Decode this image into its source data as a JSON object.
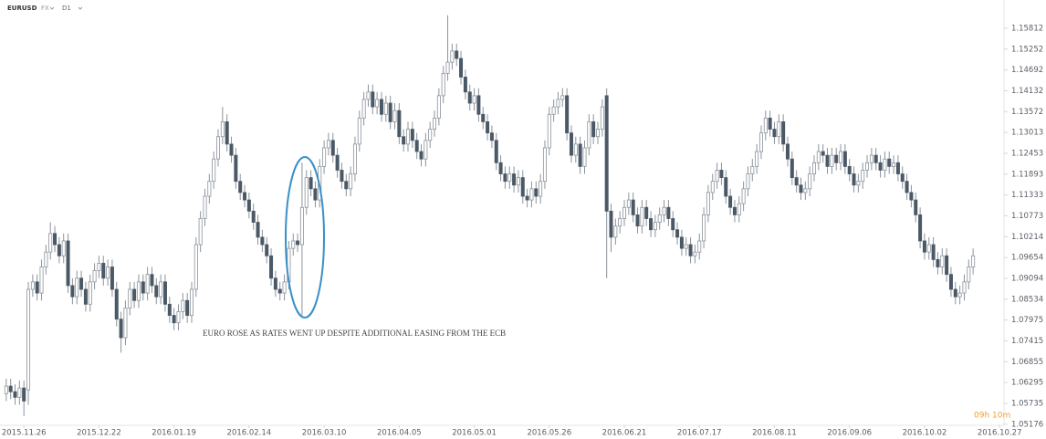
{
  "chart_data": {
    "type": "candlestick",
    "title": "EURUSD",
    "tags": [
      "FX",
      "D1"
    ],
    "annotation": "EURO ROSE AS RATES WENT UP DESPITE ADDITIONAL EASING FROM THE ECB",
    "timer": "09h 10m",
    "up_color": "#ffffff",
    "down_color": "#4b5866",
    "wick_color": "#8c939b",
    "timer_color": "#f0a030",
    "ylim": [
      1.0505,
      1.1657
    ],
    "yticks": [
      1.05176,
      1.05735,
      1.06295,
      1.06855,
      1.07415,
      1.07975,
      1.08534,
      1.09094,
      1.09654,
      1.10214,
      1.10773,
      1.11333,
      1.11893,
      1.12453,
      1.13013,
      1.13572,
      1.14132,
      1.14692,
      1.15252,
      1.15812
    ],
    "xlim": [
      -1,
      226
    ],
    "xticks": [
      {
        "value": 4,
        "label": "2015.11.26"
      },
      {
        "value": 21,
        "label": "2015.12.22"
      },
      {
        "value": 38,
        "label": "2016.01.19"
      },
      {
        "value": 55,
        "label": "2016.02.14"
      },
      {
        "value": 72,
        "label": "2016.03.10"
      },
      {
        "value": 89,
        "label": "2016.04.05"
      },
      {
        "value": 106,
        "label": "2016.05.01"
      },
      {
        "value": 123,
        "label": "2016.05.26"
      },
      {
        "value": 140,
        "label": "2016.06.21"
      },
      {
        "value": 157,
        "label": "2016.07.17"
      },
      {
        "value": 174,
        "label": "2016.08.11"
      },
      {
        "value": 191,
        "label": "2016.09.06"
      },
      {
        "value": 208,
        "label": "2016.10.02"
      },
      {
        "value": 225,
        "label": "2016.10.27"
      }
    ],
    "open": [
      1.06,
      1.062,
      1.0605,
      1.059,
      1.0615,
      1.061,
      1.088,
      1.09,
      1.087,
      1.094,
      1.098,
      1.103,
      1.1,
      1.097,
      1.101,
      1.089,
      1.086,
      1.091,
      1.088,
      1.084,
      1.09,
      1.093,
      1.095,
      1.091,
      1.094,
      1.088,
      1.08,
      1.075,
      1.083,
      1.088,
      1.085,
      1.09,
      1.087,
      1.092,
      1.089,
      1.086,
      1.09,
      1.084,
      1.081,
      1.079,
      1.082,
      1.085,
      1.081,
      1.088,
      1.1,
      1.107,
      1.113,
      1.117,
      1.123,
      1.129,
      1.133,
      1.127,
      1.124,
      1.117,
      1.114,
      1.112,
      1.109,
      1.106,
      1.102,
      1.1,
      1.097,
      1.091,
      1.088,
      1.087,
      1.09,
      1.099,
      1.101,
      1.1,
      1.11,
      1.118,
      1.115,
      1.112,
      1.121,
      1.126,
      1.128,
      1.124,
      1.12,
      1.117,
      1.115,
      1.119,
      1.127,
      1.134,
      1.139,
      1.141,
      1.137,
      1.139,
      1.135,
      1.138,
      1.133,
      1.136,
      1.129,
      1.127,
      1.131,
      1.128,
      1.125,
      1.123,
      1.128,
      1.131,
      1.134,
      1.14,
      1.146,
      1.149,
      1.152,
      1.15,
      1.145,
      1.141,
      1.138,
      1.14,
      1.135,
      1.133,
      1.13,
      1.128,
      1.122,
      1.119,
      1.117,
      1.119,
      1.116,
      1.118,
      1.113,
      1.112,
      1.115,
      1.113,
      1.117,
      1.126,
      1.135,
      1.137,
      1.139,
      1.14,
      1.13,
      1.124,
      1.127,
      1.121,
      1.126,
      1.133,
      1.129,
      1.131,
      1.14,
      1.109,
      1.102,
      1.105,
      1.107,
      1.11,
      1.112,
      1.108,
      1.105,
      1.11,
      1.107,
      1.104,
      1.106,
      1.108,
      1.11,
      1.107,
      1.104,
      1.102,
      1.099,
      1.1,
      1.097,
      1.098,
      1.101,
      1.108,
      1.114,
      1.117,
      1.12,
      1.118,
      1.113,
      1.11,
      1.108,
      1.111,
      1.115,
      1.119,
      1.121,
      1.125,
      1.13,
      1.134,
      1.131,
      1.129,
      1.133,
      1.127,
      1.123,
      1.118,
      1.116,
      1.114,
      1.115,
      1.119,
      1.122,
      1.125,
      1.124,
      1.121,
      1.124,
      1.122,
      1.125,
      1.121,
      1.119,
      1.116,
      1.117,
      1.12,
      1.122,
      1.124,
      1.122,
      1.12,
      1.123,
      1.121,
      1.122,
      1.119,
      1.117,
      1.114,
      1.112,
      1.108,
      1.101,
      1.098,
      1.1,
      1.096,
      1.094,
      1.097,
      1.092,
      1.088,
      1.086,
      1.087,
      1.09,
      1.094
    ],
    "high": [
      1.064,
      1.064,
      1.0625,
      1.0635,
      1.0635,
      1.09,
      1.092,
      1.092,
      1.096,
      1.1,
      1.106,
      1.105,
      1.102,
      1.103,
      1.103,
      1.091,
      1.093,
      1.093,
      1.09,
      1.092,
      1.095,
      1.097,
      1.097,
      1.096,
      1.096,
      1.09,
      1.082,
      1.085,
      1.09,
      1.09,
      1.092,
      1.092,
      1.094,
      1.094,
      1.091,
      1.092,
      1.092,
      1.086,
      1.083,
      1.084,
      1.087,
      1.087,
      1.09,
      1.102,
      1.109,
      1.115,
      1.119,
      1.125,
      1.131,
      1.137,
      1.135,
      1.129,
      1.126,
      1.119,
      1.116,
      1.114,
      1.111,
      1.108,
      1.104,
      1.102,
      1.099,
      1.093,
      1.09,
      1.092,
      1.101,
      1.103,
      1.103,
      1.122,
      1.12,
      1.12,
      1.117,
      1.123,
      1.128,
      1.13,
      1.13,
      1.126,
      1.122,
      1.119,
      1.121,
      1.129,
      1.136,
      1.141,
      1.143,
      1.143,
      1.141,
      1.141,
      1.14,
      1.14,
      1.138,
      1.138,
      1.131,
      1.133,
      1.133,
      1.13,
      1.127,
      1.13,
      1.133,
      1.136,
      1.142,
      1.148,
      1.1616,
      1.154,
      1.154,
      1.152,
      1.147,
      1.143,
      1.142,
      1.142,
      1.137,
      1.135,
      1.132,
      1.13,
      1.124,
      1.121,
      1.121,
      1.121,
      1.12,
      1.12,
      1.115,
      1.117,
      1.117,
      1.119,
      1.128,
      1.137,
      1.139,
      1.141,
      1.142,
      1.142,
      1.132,
      1.129,
      1.129,
      1.128,
      1.135,
      1.135,
      1.133,
      1.139,
      1.142,
      1.111,
      1.107,
      1.109,
      1.112,
      1.114,
      1.114,
      1.11,
      1.112,
      1.112,
      1.109,
      1.108,
      1.11,
      1.112,
      1.112,
      1.109,
      1.106,
      1.104,
      1.102,
      1.102,
      1.1,
      1.103,
      1.11,
      1.116,
      1.119,
      1.122,
      1.122,
      1.12,
      1.115,
      1.112,
      1.113,
      1.117,
      1.121,
      1.123,
      1.127,
      1.132,
      1.136,
      1.136,
      1.133,
      1.135,
      1.135,
      1.129,
      1.125,
      1.12,
      1.118,
      1.117,
      1.121,
      1.124,
      1.127,
      1.127,
      1.126,
      1.126,
      1.126,
      1.127,
      1.127,
      1.123,
      1.121,
      1.119,
      1.122,
      1.124,
      1.126,
      1.126,
      1.124,
      1.125,
      1.125,
      1.124,
      1.124,
      1.121,
      1.119,
      1.116,
      1.114,
      1.11,
      1.103,
      1.102,
      1.102,
      1.098,
      1.099,
      1.099,
      1.094,
      1.09,
      1.089,
      1.092,
      1.096,
      1.099
    ],
    "low": [
      1.058,
      1.0585,
      1.057,
      1.057,
      1.054,
      1.057,
      1.086,
      1.085,
      1.085,
      1.092,
      1.096,
      1.098,
      1.095,
      1.095,
      1.087,
      1.084,
      1.084,
      1.086,
      1.082,
      1.082,
      1.088,
      1.091,
      1.089,
      1.089,
      1.086,
      1.078,
      1.071,
      1.073,
      1.081,
      1.083,
      1.083,
      1.085,
      1.085,
      1.087,
      1.084,
      1.084,
      1.082,
      1.079,
      1.077,
      1.077,
      1.08,
      1.079,
      1.079,
      1.086,
      1.098,
      1.105,
      1.111,
      1.115,
      1.121,
      1.127,
      1.125,
      1.122,
      1.115,
      1.112,
      1.11,
      1.107,
      1.104,
      1.1,
      1.098,
      1.095,
      1.089,
      1.086,
      1.085,
      1.085,
      1.088,
      1.097,
      1.098,
      1.081,
      1.108,
      1.113,
      1.11,
      1.11,
      1.119,
      1.124,
      1.122,
      1.118,
      1.115,
      1.113,
      1.113,
      1.117,
      1.125,
      1.132,
      1.137,
      1.135,
      1.135,
      1.133,
      1.133,
      1.131,
      1.131,
      1.127,
      1.125,
      1.125,
      1.126,
      1.123,
      1.121,
      1.121,
      1.126,
      1.129,
      1.132,
      1.138,
      1.144,
      1.147,
      1.148,
      1.143,
      1.139,
      1.136,
      1.136,
      1.133,
      1.131,
      1.128,
      1.126,
      1.12,
      1.117,
      1.115,
      1.115,
      1.114,
      1.114,
      1.111,
      1.11,
      1.11,
      1.111,
      1.111,
      1.115,
      1.124,
      1.133,
      1.135,
      1.137,
      1.128,
      1.122,
      1.122,
      1.119,
      1.119,
      1.124,
      1.127,
      1.127,
      1.129,
      1.091,
      1.098,
      1.1,
      1.103,
      1.105,
      1.108,
      1.106,
      1.103,
      1.103,
      1.105,
      1.102,
      1.102,
      1.104,
      1.106,
      1.105,
      1.102,
      1.1,
      1.097,
      1.097,
      1.095,
      1.095,
      1.096,
      1.099,
      1.106,
      1.112,
      1.115,
      1.116,
      1.111,
      1.108,
      1.106,
      1.106,
      1.109,
      1.113,
      1.117,
      1.119,
      1.123,
      1.128,
      1.129,
      1.127,
      1.127,
      1.125,
      1.121,
      1.116,
      1.114,
      1.112,
      1.112,
      1.113,
      1.117,
      1.12,
      1.122,
      1.119,
      1.119,
      1.12,
      1.12,
      1.119,
      1.117,
      1.114,
      1.114,
      1.115,
      1.118,
      1.12,
      1.12,
      1.118,
      1.118,
      1.119,
      1.119,
      1.117,
      1.115,
      1.112,
      1.11,
      1.106,
      1.099,
      1.096,
      1.096,
      1.094,
      1.092,
      1.092,
      1.09,
      1.086,
      1.084,
      1.084,
      1.085,
      1.088,
      1.092
    ],
    "close": [
      1.062,
      1.0605,
      1.059,
      1.0615,
      1.058,
      1.088,
      1.09,
      1.087,
      1.094,
      1.098,
      1.103,
      1.1,
      1.097,
      1.101,
      1.089,
      1.086,
      1.091,
      1.088,
      1.084,
      1.09,
      1.093,
      1.095,
      1.091,
      1.094,
      1.088,
      1.08,
      1.075,
      1.083,
      1.088,
      1.085,
      1.09,
      1.087,
      1.092,
      1.089,
      1.086,
      1.09,
      1.084,
      1.081,
      1.079,
      1.082,
      1.085,
      1.081,
      1.088,
      1.1,
      1.107,
      1.113,
      1.117,
      1.123,
      1.129,
      1.133,
      1.127,
      1.124,
      1.117,
      1.114,
      1.112,
      1.109,
      1.106,
      1.102,
      1.1,
      1.097,
      1.091,
      1.088,
      1.087,
      1.09,
      1.099,
      1.101,
      1.1,
      1.11,
      1.118,
      1.115,
      1.112,
      1.121,
      1.126,
      1.128,
      1.124,
      1.12,
      1.117,
      1.115,
      1.119,
      1.127,
      1.134,
      1.139,
      1.141,
      1.137,
      1.139,
      1.135,
      1.138,
      1.133,
      1.136,
      1.129,
      1.127,
      1.131,
      1.128,
      1.125,
      1.123,
      1.128,
      1.131,
      1.134,
      1.14,
      1.146,
      1.149,
      1.152,
      1.15,
      1.145,
      1.141,
      1.138,
      1.14,
      1.135,
      1.133,
      1.13,
      1.128,
      1.122,
      1.119,
      1.117,
      1.119,
      1.116,
      1.118,
      1.113,
      1.112,
      1.115,
      1.113,
      1.117,
      1.126,
      1.135,
      1.137,
      1.139,
      1.14,
      1.13,
      1.124,
      1.127,
      1.121,
      1.126,
      1.133,
      1.129,
      1.131,
      1.137,
      1.109,
      1.102,
      1.105,
      1.107,
      1.11,
      1.112,
      1.108,
      1.105,
      1.11,
      1.107,
      1.104,
      1.106,
      1.108,
      1.11,
      1.107,
      1.104,
      1.102,
      1.099,
      1.1,
      1.097,
      1.098,
      1.101,
      1.108,
      1.114,
      1.117,
      1.12,
      1.118,
      1.113,
      1.11,
      1.108,
      1.111,
      1.115,
      1.119,
      1.121,
      1.125,
      1.13,
      1.134,
      1.131,
      1.129,
      1.133,
      1.127,
      1.123,
      1.118,
      1.116,
      1.114,
      1.115,
      1.119,
      1.122,
      1.125,
      1.124,
      1.121,
      1.124,
      1.122,
      1.125,
      1.121,
      1.119,
      1.116,
      1.117,
      1.12,
      1.122,
      1.124,
      1.122,
      1.12,
      1.123,
      1.121,
      1.122,
      1.119,
      1.117,
      1.114,
      1.112,
      1.108,
      1.101,
      1.098,
      1.1,
      1.096,
      1.094,
      1.097,
      1.092,
      1.088,
      1.086,
      1.087,
      1.09,
      1.094,
      1.097
    ]
  }
}
